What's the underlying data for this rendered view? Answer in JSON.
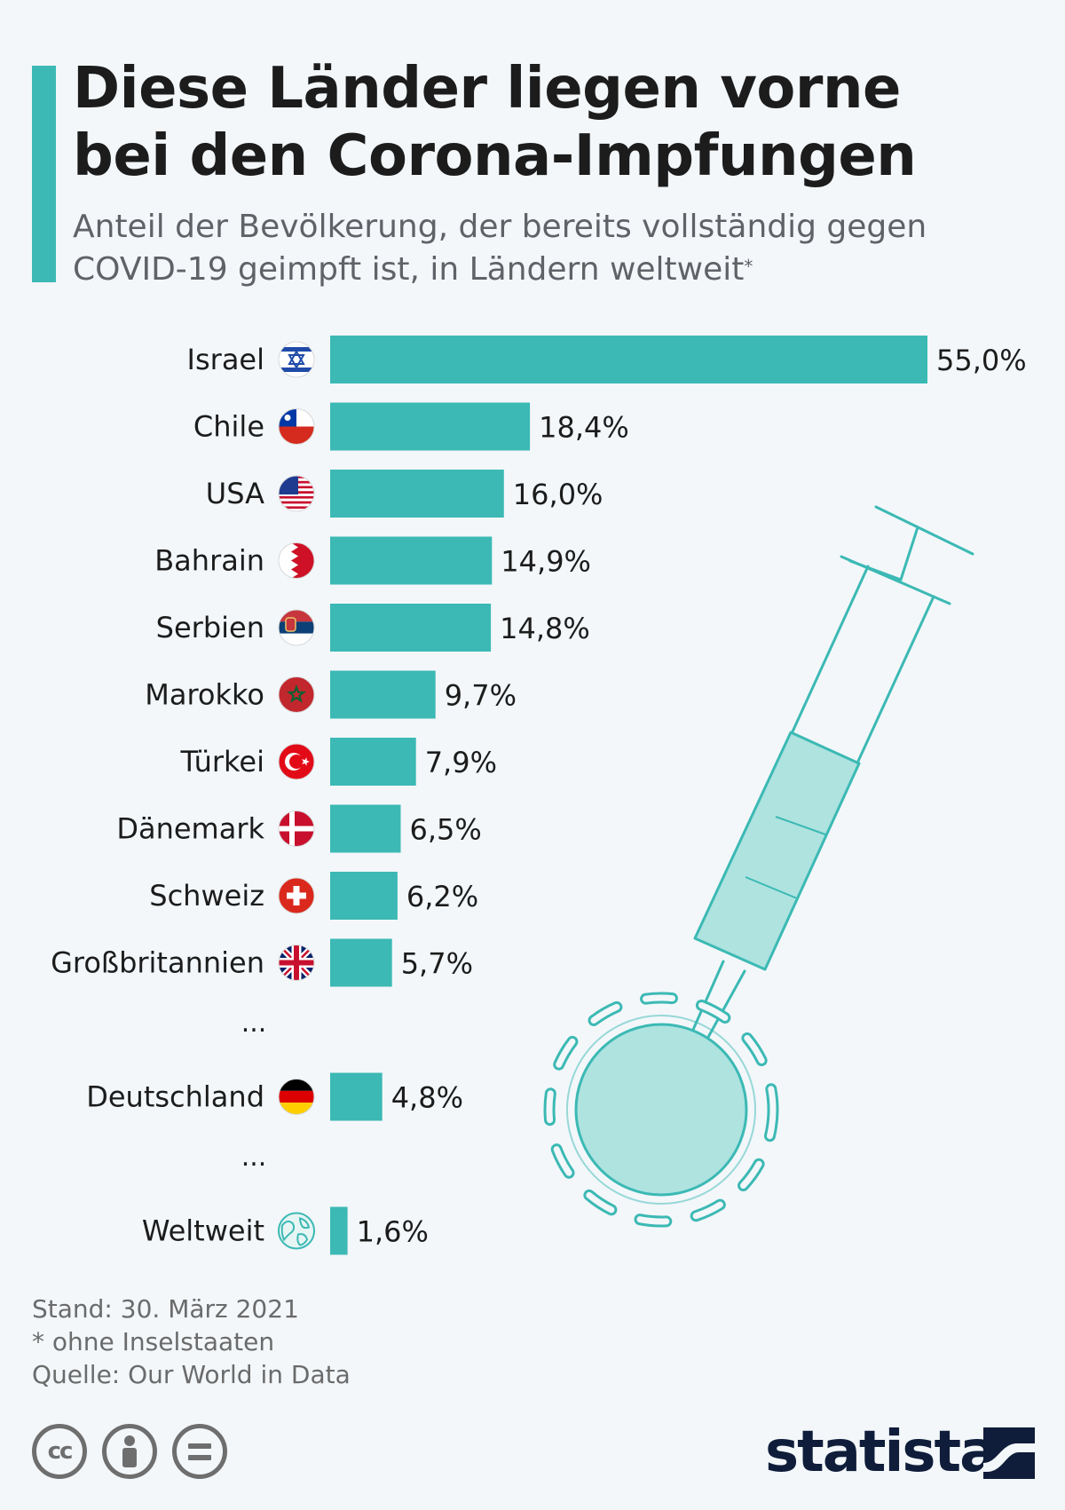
{
  "header": {
    "title_lines": [
      "Diese Länder liegen vorne",
      "bei den Corona-Impfungen"
    ],
    "subtitle_lines": [
      "Anteil der Bevölkerung, der bereits vollständig gegen",
      "COVID-19 geimpft ist, in Ländern weltweit"
    ],
    "subtitle_marker": "*"
  },
  "chart_data": {
    "type": "bar",
    "orientation": "horizontal",
    "unit": "%",
    "xlim": [
      0,
      55
    ],
    "grid": false,
    "legend": "none",
    "bar_color": "#3cb9b4",
    "rows": [
      {
        "kind": "bar",
        "label": "Israel",
        "value": 55.0,
        "value_label": "55,0%",
        "flag": "israel"
      },
      {
        "kind": "bar",
        "label": "Chile",
        "value": 18.4,
        "value_label": "18,4%",
        "flag": "chile"
      },
      {
        "kind": "bar",
        "label": "USA",
        "value": 16.0,
        "value_label": "16,0%",
        "flag": "usa"
      },
      {
        "kind": "bar",
        "label": "Bahrain",
        "value": 14.9,
        "value_label": "14,9%",
        "flag": "bahrain"
      },
      {
        "kind": "bar",
        "label": "Serbien",
        "value": 14.8,
        "value_label": "14,8%",
        "flag": "serbia"
      },
      {
        "kind": "bar",
        "label": "Marokko",
        "value": 9.7,
        "value_label": "9,7%",
        "flag": "morocco"
      },
      {
        "kind": "bar",
        "label": "Türkei",
        "value": 7.9,
        "value_label": "7,9%",
        "flag": "turkey"
      },
      {
        "kind": "bar",
        "label": "Dänemark",
        "value": 6.5,
        "value_label": "6,5%",
        "flag": "denmark"
      },
      {
        "kind": "bar",
        "label": "Schweiz",
        "value": 6.2,
        "value_label": "6,2%",
        "flag": "switzerland"
      },
      {
        "kind": "bar",
        "label": "Großbritannien",
        "value": 5.7,
        "value_label": "5,7%",
        "flag": "uk"
      },
      {
        "kind": "gap",
        "label": "..."
      },
      {
        "kind": "bar",
        "label": "Deutschland",
        "value": 4.8,
        "value_label": "4,8%",
        "flag": "germany"
      },
      {
        "kind": "gap",
        "label": "..."
      },
      {
        "kind": "bar",
        "label": "Weltweit",
        "value": 1.6,
        "value_label": "1,6%",
        "flag": "globe"
      }
    ]
  },
  "footer": {
    "date": "Stand: 30. März 2021",
    "note": "* ohne Inselstaaten",
    "source": "Quelle: Our World in Data"
  },
  "license_icons": [
    "cc-icon",
    "by-person-icon",
    "nd-equals-icon"
  ],
  "brand": {
    "name": "statista",
    "logo_icon": "statista-logo-icon"
  },
  "decoration": {
    "illustration": "syringe-virus-illustration",
    "color": "#3cb9b4",
    "fill": "#aee3e0"
  }
}
